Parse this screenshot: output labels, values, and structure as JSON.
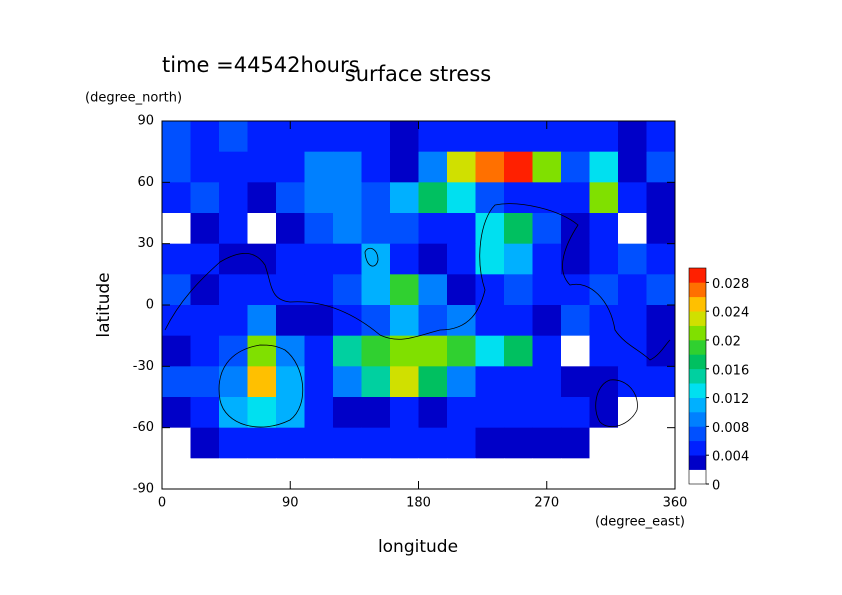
{
  "chart_data": {
    "type": "contour",
    "title": "surface stress",
    "subtitle": "time =44542hours",
    "x_label": "longitude",
    "x_unit": "(degree_east)",
    "y_label": "latitude",
    "y_unit": "(degree_north)",
    "xlim": [
      0,
      360
    ],
    "xticks": [
      0,
      90,
      180,
      270,
      360
    ],
    "ylim": [
      -90,
      90
    ],
    "yticks": [
      -90,
      -60,
      -30,
      0,
      30,
      60,
      90
    ],
    "x": [
      10,
      30,
      50,
      70,
      90,
      110,
      130,
      150,
      170,
      190,
      210,
      230,
      250,
      270,
      290,
      310,
      330,
      350
    ],
    "y": [
      82.5,
      67.5,
      52.5,
      37.5,
      22.5,
      7.5,
      -7.5,
      -22.5,
      -37.5,
      -52.5,
      -67.5,
      -82.5
    ],
    "z": [
      [
        0.006,
        0.005,
        0.006,
        0.005,
        0.004,
        0.005,
        0.005,
        0.004,
        0.003,
        0.004,
        0.005,
        0.004,
        0.004,
        0.004,
        0.005,
        0.004,
        0.003,
        0.005
      ],
      [
        0.006,
        0.004,
        0.005,
        0.004,
        0.004,
        0.008,
        0.009,
        0.004,
        0.002,
        0.008,
        0.022,
        0.026,
        0.028,
        0.02,
        0.006,
        0.012,
        0.003,
        0.006
      ],
      [
        0.005,
        0.006,
        0.004,
        0.003,
        0.006,
        0.009,
        0.008,
        0.006,
        0.01,
        0.016,
        0.012,
        0.006,
        0.005,
        0.004,
        0.005,
        0.02,
        0.004,
        0.003
      ],
      [
        0.001,
        0.002,
        0.005,
        0.001,
        0.003,
        0.006,
        0.008,
        0.007,
        0.007,
        0.005,
        0.004,
        0.012,
        0.016,
        0.007,
        0.003,
        0.005,
        0.001,
        0.002
      ],
      [
        0.005,
        0.004,
        0.003,
        0.003,
        0.005,
        0.004,
        0.005,
        0.01,
        0.005,
        0.003,
        0.005,
        0.012,
        0.01,
        0.004,
        0.003,
        0.005,
        0.007,
        0.004
      ],
      [
        0.006,
        0.003,
        0.004,
        0.005,
        0.004,
        0.004,
        0.007,
        0.01,
        0.018,
        0.008,
        0.003,
        0.004,
        0.007,
        0.005,
        0.004,
        0.006,
        0.005,
        0.006
      ],
      [
        0.005,
        0.004,
        0.004,
        0.008,
        0.002,
        0.003,
        0.004,
        0.006,
        0.01,
        0.006,
        0.008,
        0.005,
        0.004,
        0.003,
        0.006,
        0.004,
        0.004,
        0.002
      ],
      [
        0.003,
        0.004,
        0.006,
        0.02,
        0.008,
        0.005,
        0.014,
        0.018,
        0.02,
        0.02,
        0.018,
        0.012,
        0.016,
        0.004,
        0.001,
        0.005,
        0.004,
        0.002
      ],
      [
        0.006,
        0.006,
        0.008,
        0.024,
        0.01,
        0.005,
        0.008,
        0.014,
        0.022,
        0.016,
        0.008,
        0.004,
        0.005,
        0.005,
        0.003,
        0.003,
        0.004,
        0.004
      ],
      [
        0.002,
        0.004,
        0.01,
        0.012,
        0.01,
        0.004,
        0.002,
        0.003,
        0.005,
        0.003,
        0.004,
        0.005,
        0.004,
        0.004,
        0.005,
        0.003,
        0.001,
        0.001
      ],
      [
        0,
        0.002,
        0.004,
        0.005,
        0.005,
        0.004,
        0.004,
        0.004,
        0.004,
        0.004,
        0.004,
        0.003,
        0.003,
        0.003,
        0.002,
        0.001,
        0,
        0
      ],
      [
        0,
        0,
        0,
        0,
        0,
        0,
        0,
        0,
        0,
        0,
        0,
        0,
        0,
        0,
        0,
        0,
        0,
        0
      ]
    ],
    "zlim": [
      0,
      0.03
    ],
    "zticks": [
      0,
      0.004,
      0.008,
      0.012,
      0.016,
      0.02,
      0.024,
      0.028
    ],
    "colors": [
      "#ffffff",
      "#0000c8",
      "#0020ff",
      "#0050ff",
      "#0080ff",
      "#00b0ff",
      "#00e0f0",
      "#00d0a0",
      "#00c060",
      "#30d030",
      "#80e000",
      "#d0e000",
      "#ffc000",
      "#ff7000",
      "#ff2000"
    ]
  }
}
